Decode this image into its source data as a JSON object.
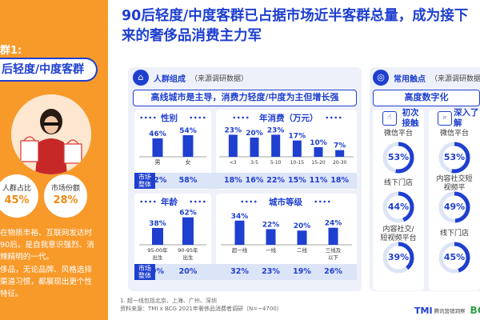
{
  "title": {
    "line1": "90后轻度/中度客群已占据市场近半客群总量，成为接下",
    "line2": "来的奢侈品消费主力军"
  },
  "left": {
    "segment_title": "群1:",
    "segment_label": "后轻度/中度客群",
    "stat1_label": "人群占比",
    "stat1_value": "45%",
    "stat2_label": "市场份额",
    "stat2_value": "28%",
    "desc": [
      "在物质丰裕、互联网发达时",
      "90后，是自我意识强烈、消",
      "辣精明的一代。",
      "侈品，无论品牌、风格选择",
      "渠道习惯，都展现出更个性",
      "特征。"
    ]
  },
  "people_panel": {
    "title": "人群组成",
    "source": "（来源调研数据）",
    "banner": "高线城市是主导，消费力轻度/中度为主但增长强",
    "market_whole": "市场整体",
    "gender": {
      "title": "性别",
      "categories": [
        "男",
        "女"
      ],
      "values": [
        46,
        54
      ],
      "value_labels": [
        "46%",
        "54%"
      ],
      "overall": [
        "42%",
        "58%"
      ]
    },
    "spend": {
      "title": "年消费（万元）",
      "categories": [
        "<3",
        "3-5",
        "5-10",
        "10-15",
        "15-20",
        "20-30"
      ],
      "values": [
        23,
        20,
        23,
        17,
        10,
        7
      ],
      "value_labels": [
        "23%",
        "20%",
        "23%",
        "17%",
        "10%",
        "7%"
      ],
      "overall": [
        "18%",
        "16%",
        "22%",
        "15%",
        "11%",
        "18%"
      ]
    },
    "age": {
      "title": "年龄",
      "categories": [
        "95-00年出生",
        "90-95年出生"
      ],
      "values": [
        38,
        62
      ],
      "value_labels": [
        "38%",
        "62%"
      ],
      "overall": [
        "9%",
        "20%"
      ]
    },
    "city": {
      "title": "城市等级",
      "categories": [
        "超一线",
        "一线",
        "二线",
        "三线及以下"
      ],
      "values": [
        34,
        22,
        20,
        24
      ],
      "value_labels": [
        "34%",
        "22%",
        "20%",
        "24%"
      ],
      "overall": [
        "32%",
        "23%",
        "19%",
        "26%"
      ]
    }
  },
  "touch_panel": {
    "title": "常用触点",
    "source": "（来源调研数据）",
    "banner": "高度数字化",
    "col1_head": "初次接触",
    "col2_head": "深入了解",
    "col1": [
      {
        "label": "微信平台",
        "value": "53%",
        "pct": 53
      },
      {
        "label": "线下门店",
        "value": "44%",
        "pct": 44
      },
      {
        "label": "内容社交/短视频平台",
        "value": "39%",
        "pct": 39
      }
    ],
    "col2": [
      {
        "label": "微信平台",
        "value": "53%",
        "pct": 53
      },
      {
        "label": "内容社交短视频平",
        "value": "49%",
        "pct": 49
      },
      {
        "label": "线下门店",
        "value": "45%",
        "pct": 45
      }
    ]
  },
  "footnote": {
    "line1": "1. 超一线包括北京、上海、广州、深圳",
    "line2": "资料来源：TMI x BCG 2021年奢侈品消费者调研（N=~4700）"
  },
  "logo": {
    "mark": "TMI",
    "text": "腾讯营销洞察",
    "b": "BC"
  },
  "colors": {
    "accent": "#1e3fcf",
    "orange": "#f79a2a",
    "panel": "#eef1f9"
  }
}
